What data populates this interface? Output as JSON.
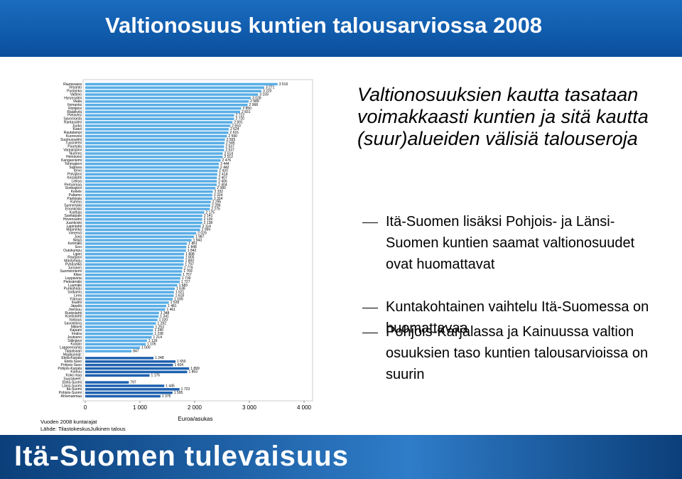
{
  "header": {
    "title": "Valtionosuus kuntien talousarviossa 2008"
  },
  "chart_data": {
    "type": "bar",
    "orientation": "horizontal",
    "categories": [
      "Rautavaara",
      "Vesanto",
      "Puolanka",
      "Valtimo",
      "Hyrynsalmi",
      "Vaala",
      "Ilomantsi",
      "Ristijärvi",
      "Rääkkylä",
      "Pielavesi",
      "Savonranta",
      "Rantasalmi",
      "Juuka",
      "Kaavi",
      "Rautalampi",
      "Kuorevesi",
      "Suomussalmi",
      "Tuusniemi",
      "Puumala",
      "Varpaisjärvi",
      "Nurmes",
      "Heinävesi",
      "Kangasniemi",
      "Tohmajärvi",
      "Sulkava",
      "Tervo",
      "Polvijärvi",
      "Kesälahti",
      "Lieksa",
      "Pertunmaa",
      "Sonkajärvi",
      "Keitele",
      "Paltamo",
      "Parikkala",
      "Kuhmo",
      "Suonenjoki",
      "Enonkoski",
      "Karttula",
      "Savitaipale",
      "Hirvensalmi",
      "Juankoski",
      "Lapinlahti",
      "Maaninka",
      "Vieremä",
      "Juva",
      "Nilsiä",
      "Kerimäki",
      "Eno",
      "Outokumpu",
      "Liperi",
      "Rautjärvi",
      "Mäntyharju",
      "Pyhäselkä",
      "Joroinen",
      "Suomenniemi",
      "Kitee",
      "Leppävirta",
      "Pieksämäki",
      "Luumäki",
      "Punkaharju",
      "Sotkamo",
      "Lemi",
      "Ylämaa",
      "Iisalmi",
      "Jäppilä",
      "Joensuu",
      "Ruokolahti",
      "Kontiolahti",
      "Varkaus",
      "Savonlinna",
      "Mikkeli",
      "Kajaani",
      "Imatra",
      "Joutseno",
      "Siilinjärvi",
      "Kuopio",
      "Lappeenranta",
      "Taipalsaari",
      "Maakunnat:",
      "Etelä-Karjala",
      "Etelä-Savo",
      "Pohjois-Savo",
      "Pohjois-Karjala",
      "Kainuu",
      "Koko maa",
      "Suuralueet:",
      "Etelä-Suomi",
      "Länsi-Suomi",
      "Itä-Suomi",
      "Pohjois-Suomi",
      "Ahvenanmaa"
    ],
    "values": [
      3516,
      3271,
      3220,
      3159,
      3028,
      2989,
      2968,
      2850,
      2831,
      2722,
      2720,
      2691,
      2653,
      2624,
      2616,
      2590,
      2555,
      2546,
      2537,
      2537,
      2514,
      2512,
      2476,
      2444,
      2442,
      2420,
      2414,
      2407,
      2406,
      2404,
      2380,
      2332,
      2324,
      2324,
      2295,
      2286,
      2276,
      2175,
      2141,
      2139,
      2138,
      2114,
      2099,
      2029,
      1987,
      1943,
      1861,
      1848,
      1842,
      1808,
      1805,
      1800,
      1797,
      1779,
      1769,
      1757,
      1739,
      1727,
      1683,
      1638,
      1621,
      1618,
      1599,
      1528,
      1481,
      1461,
      1348,
      1341,
      1320,
      1292,
      1253,
      1240,
      1238,
      1214,
      1129,
      1105,
      1000,
      847,
      null,
      1248,
      1650,
      1604,
      1899,
      1863,
      1176,
      null,
      797,
      1445,
      1723,
      1595,
      1375
    ],
    "value_labels": [
      "3 516",
      "3 271",
      "3 220",
      "3 159",
      "3 028",
      "2 989",
      "2 968",
      "2 850",
      "2 831",
      "2 722",
      "2 720",
      "2 691",
      "2 653",
      "2 624",
      "2 616",
      "2 590",
      "2 555",
      "2 546",
      "2 537",
      "2 537",
      "2 514",
      "2 512",
      "2 476",
      "2 444",
      "2 442",
      "2 420",
      "2 414",
      "2 407",
      "2 406",
      "2 404",
      "2 380",
      "2 332",
      "2 324",
      "2 324",
      "2 295",
      "2 286",
      "2 276",
      "2 175",
      "2 141",
      "2 139",
      "2 138",
      "2 114",
      "2 099",
      "2 029",
      "1 987",
      "1 943",
      "1 861",
      "1 848",
      "1 842",
      "1 808",
      "1 805",
      "1 800",
      "1 797",
      "1 779",
      "1 769",
      "1 757",
      "1 739",
      "1 727",
      "1 683",
      "1 638",
      "1 621",
      "1 618",
      "1 599",
      "1 528",
      "1 481",
      "1 461",
      "1 348",
      "1 341",
      "1 320",
      "1 292",
      "1 253",
      "1 240",
      "1 238",
      "1 214",
      "1 129",
      "1 105",
      "1 000",
      "847",
      null,
      "1 248",
      "1 650",
      "1 604",
      "1 899",
      "1 863",
      "1 176",
      null,
      "797",
      "1 445",
      "1 723",
      "1 595",
      "1 375"
    ],
    "color": "#5aaee6",
    "region_color": "#1f62b0",
    "region_from": "Maakunnat:",
    "xlim": [
      0,
      4000
    ],
    "xticks": [
      0,
      {
        "value": 1000,
        "label": "1 000"
      },
      {
        "value": 2000,
        "label": "2 000"
      },
      {
        "value": 3000,
        "label": "3 000"
      },
      {
        "value": 4000,
        "label": "4 000"
      }
    ],
    "xlabel": "Euroa/asukas",
    "notes": [
      "Vuoden 2008 kuntarajat",
      "Lähde: TilastokeskusJulkinen talous"
    ]
  },
  "text_panel": {
    "heading": "Valtionosuuksien kautta tasataan voimakkaasti kuntien ja sitä kautta (suur)alueiden välisiä talouseroja",
    "bullets": [
      "Itä-Suomen lisäksi Pohjois- ja Länsi-Suomen kuntien saamat valtionosuudet ovat huomattavat",
      "Kuntakohtainen vaihtelu Itä-Suomessa on huomattavaa",
      "Pohjois-Karjalassa ja Kainuussa valtion osuuksien taso kuntien talousarvioissa on suurin"
    ]
  },
  "footer": {
    "banner": "Itä-Suomen tulevaisuus"
  }
}
